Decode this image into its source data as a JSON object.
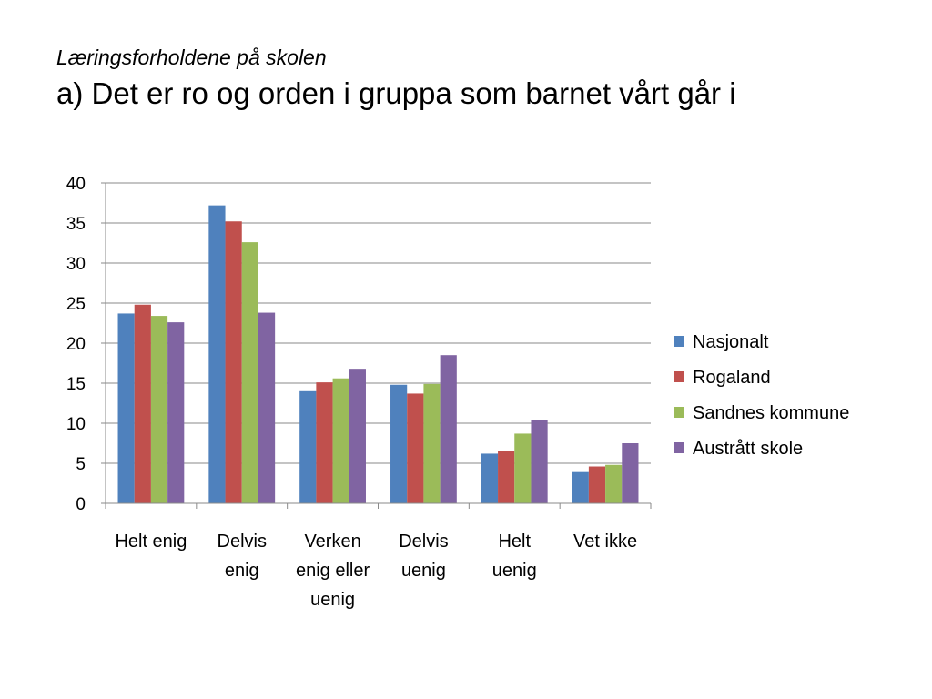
{
  "slide": {
    "subtitle": "Læringsforholdene på skolen",
    "title": "a) Det er ro og orden i gruppa som barnet vårt går i"
  },
  "chart_data": {
    "type": "bar",
    "categories": [
      "Helt enig",
      "Delvis enig",
      "Verken enig eller uenig",
      "Delvis uenig",
      "Helt uenig",
      "Vet ikke"
    ],
    "category_lines": [
      [
        "Helt enig"
      ],
      [
        "Delvis",
        "enig"
      ],
      [
        "Verken",
        "enig eller",
        "uenig"
      ],
      [
        "Delvis",
        "uenig"
      ],
      [
        "Helt",
        "uenig"
      ],
      [
        "Vet ikke"
      ]
    ],
    "series": [
      {
        "name": "Nasjonalt",
        "color": "#4F81BD",
        "values": [
          23.7,
          37.2,
          14.0,
          14.8,
          6.2,
          3.9
        ]
      },
      {
        "name": "Rogaland",
        "color": "#C0504D",
        "values": [
          24.8,
          35.2,
          15.1,
          13.7,
          6.5,
          4.6
        ]
      },
      {
        "name": "Sandnes kommune",
        "color": "#9BBB59",
        "values": [
          23.4,
          32.6,
          15.6,
          14.9,
          8.7,
          4.8
        ]
      },
      {
        "name": "Austrått skole",
        "color": "#8064A2",
        "values": [
          22.6,
          23.8,
          16.8,
          18.5,
          10.4,
          7.5
        ]
      }
    ],
    "ylim": [
      0,
      40
    ],
    "yticks": [
      0,
      5,
      10,
      15,
      20,
      25,
      30,
      35,
      40
    ],
    "grid": true,
    "legend_position": "right"
  }
}
